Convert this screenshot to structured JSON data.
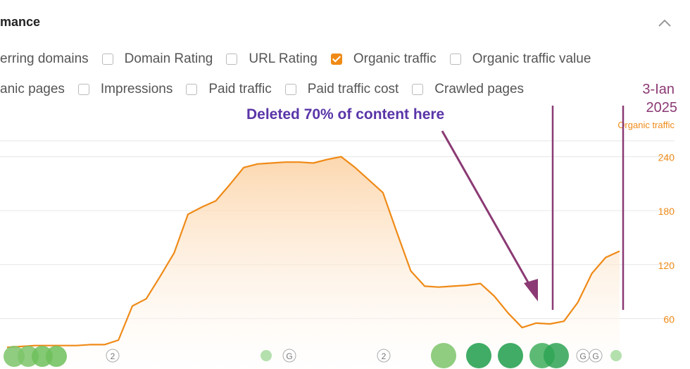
{
  "header": {
    "title": "mance"
  },
  "filters": [
    [
      {
        "label": "erring domains",
        "checked": null
      },
      {
        "label": "Domain Rating",
        "checked": false
      },
      {
        "label": "URL Rating",
        "checked": false
      },
      {
        "label": "Organic traffic",
        "checked": true
      },
      {
        "label": "Organic traffic value",
        "checked": false
      }
    ],
    [
      {
        "label": "anic pages",
        "checked": null
      },
      {
        "label": "Impressions",
        "checked": false
      },
      {
        "label": "Paid traffic",
        "checked": false
      },
      {
        "label": "Paid traffic cost",
        "checked": false
      },
      {
        "label": "Crawled pages",
        "checked": false
      }
    ]
  ],
  "markers": [
    "2",
    "G",
    "2",
    "G",
    "G"
  ],
  "chart_data": {
    "type": "area",
    "axis_label": "Organic traffic",
    "annotation": "Deleted 70% of content here",
    "date_annotation": [
      "3-Ian",
      "2025"
    ],
    "color": "#ef8a17",
    "ylim": [
      0,
      260
    ],
    "yticks": [
      60,
      120,
      180,
      240
    ],
    "grid": true,
    "values": [
      28,
      29,
      30,
      30,
      30,
      30,
      31,
      31,
      36,
      74,
      82,
      107,
      133,
      176,
      184,
      191,
      209,
      228,
      232,
      233,
      234,
      234,
      233,
      237,
      240,
      228,
      214,
      200,
      156,
      113,
      96,
      95,
      96,
      97,
      99,
      85,
      66,
      50,
      55,
      54,
      57,
      78,
      110,
      128,
      135
    ]
  }
}
